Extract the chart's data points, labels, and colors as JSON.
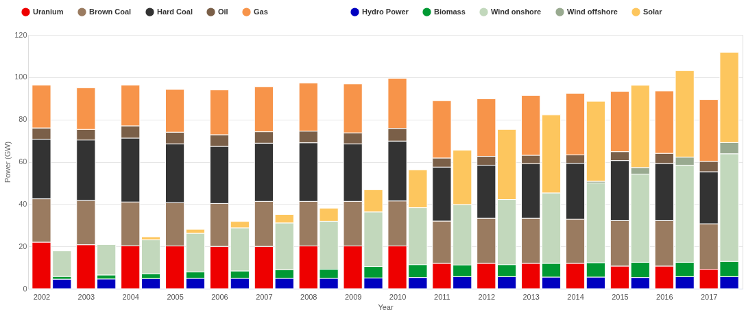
{
  "chart_data": {
    "type": "bar",
    "stacked": true,
    "xlabel": "Year",
    "ylabel": "Power (GW)",
    "categories": [
      "2002",
      null,
      "2003",
      null,
      "2004",
      null,
      "2005",
      null,
      "2006",
      null,
      "2007",
      null,
      "2008",
      null,
      "2009",
      null,
      "2010",
      null,
      "2011",
      null,
      "2012",
      null,
      "2013",
      null,
      "2014",
      null,
      "2015",
      null,
      "2016",
      null,
      "2017",
      null
    ],
    "ylim": [
      0,
      120
    ],
    "yticks": [
      0,
      20,
      40,
      60,
      80,
      100,
      120
    ],
    "grid": "y",
    "legend": "top",
    "series": [
      {
        "name": "Uranium",
        "color": "#ee0000",
        "values": [
          22,
          null,
          20.8,
          null,
          20.3,
          null,
          20.2,
          null,
          20,
          null,
          20,
          null,
          20.2,
          null,
          20.2,
          null,
          20.2,
          null,
          12,
          null,
          12,
          null,
          12,
          null,
          12,
          null,
          10.7,
          null,
          10.7,
          null,
          9.2,
          null
        ]
      },
      {
        "name": "Brown Coal",
        "color": "#9a7b60",
        "values": [
          20.5,
          null,
          20.9,
          null,
          20.7,
          null,
          20.5,
          null,
          20.3,
          null,
          21.3,
          null,
          21.1,
          null,
          21.1,
          null,
          21.3,
          null,
          20,
          null,
          21.3,
          null,
          21.3,
          null,
          20.9,
          null,
          21.5,
          null,
          21.5,
          null,
          21.5,
          null
        ]
      },
      {
        "name": "Hard Coal",
        "color": "#333333",
        "values": [
          28.2,
          null,
          28.6,
          null,
          30.2,
          null,
          27.8,
          null,
          27,
          null,
          27.5,
          null,
          27.7,
          null,
          27.2,
          null,
          28.3,
          null,
          25.5,
          null,
          25.1,
          null,
          25.8,
          null,
          26.4,
          null,
          28.4,
          null,
          27,
          null,
          24.6,
          null
        ]
      },
      {
        "name": "Oil",
        "color": "#7a5f48",
        "values": [
          5.3,
          null,
          5,
          null,
          5.8,
          null,
          5.5,
          null,
          5.5,
          null,
          5.4,
          null,
          5.5,
          null,
          5.2,
          null,
          6,
          null,
          4.3,
          null,
          4.2,
          null,
          4,
          null,
          4,
          null,
          4.2,
          null,
          4.8,
          null,
          4.9,
          null
        ]
      },
      {
        "name": "Gas",
        "color": "#f7944a",
        "values": [
          20.3,
          null,
          19.7,
          null,
          19.3,
          null,
          20.3,
          null,
          21.2,
          null,
          21.3,
          null,
          22.8,
          null,
          23.1,
          null,
          23.7,
          null,
          27.1,
          null,
          27.2,
          null,
          28.3,
          null,
          29.1,
          null,
          28.5,
          null,
          29.5,
          null,
          29.2,
          null
        ]
      },
      {
        "name": "Hydro Power",
        "color": "#0000c0",
        "values": [
          null,
          4.5,
          null,
          4.6,
          null,
          4.8,
          null,
          4.9,
          null,
          4.9,
          null,
          4.9,
          null,
          4.9,
          null,
          5.1,
          null,
          5.3,
          null,
          5.7,
          null,
          5.7,
          null,
          5.5,
          null,
          5.5,
          null,
          5.3,
          null,
          5.7,
          null,
          5.7
        ]
      },
      {
        "name": "Biomass",
        "color": "#009933",
        "values": [
          null,
          1.3,
          null,
          1.9,
          null,
          2.3,
          null,
          3,
          null,
          3.5,
          null,
          4,
          null,
          4.3,
          null,
          5.4,
          null,
          6.1,
          null,
          5.5,
          null,
          5.7,
          null,
          6.5,
          null,
          6.8,
          null,
          7.2,
          null,
          6.8,
          null,
          7.2
        ]
      },
      {
        "name": "Wind onshore",
        "color": "#c2d8bc",
        "values": [
          null,
          12.1,
          null,
          14.4,
          null,
          16,
          null,
          18.3,
          null,
          20.4,
          null,
          22.2,
          null,
          22.7,
          null,
          25.8,
          null,
          26.9,
          null,
          28.6,
          null,
          30.8,
          null,
          33.3,
          null,
          37.7,
          null,
          41.7,
          null,
          45.9,
          null,
          50.9
        ]
      },
      {
        "name": "Wind offshore",
        "color": "#99aa90",
        "values": [
          null,
          null,
          null,
          null,
          null,
          null,
          null,
          null,
          null,
          null,
          null,
          null,
          null,
          null,
          null,
          null,
          null,
          null,
          null,
          null,
          null,
          null,
          null,
          null,
          null,
          0.8,
          null,
          3.1,
          null,
          3.8,
          null,
          5.3
        ]
      },
      {
        "name": "Solar",
        "color": "#fdc65e",
        "values": [
          null,
          null,
          null,
          null,
          null,
          1.4,
          null,
          1.9,
          null,
          3,
          null,
          4,
          null,
          6.2,
          null,
          10.5,
          null,
          17.9,
          null,
          25.7,
          null,
          33.1,
          null,
          36.9,
          null,
          37.8,
          null,
          38.9,
          null,
          40.9,
          null,
          42.7
        ]
      }
    ]
  }
}
